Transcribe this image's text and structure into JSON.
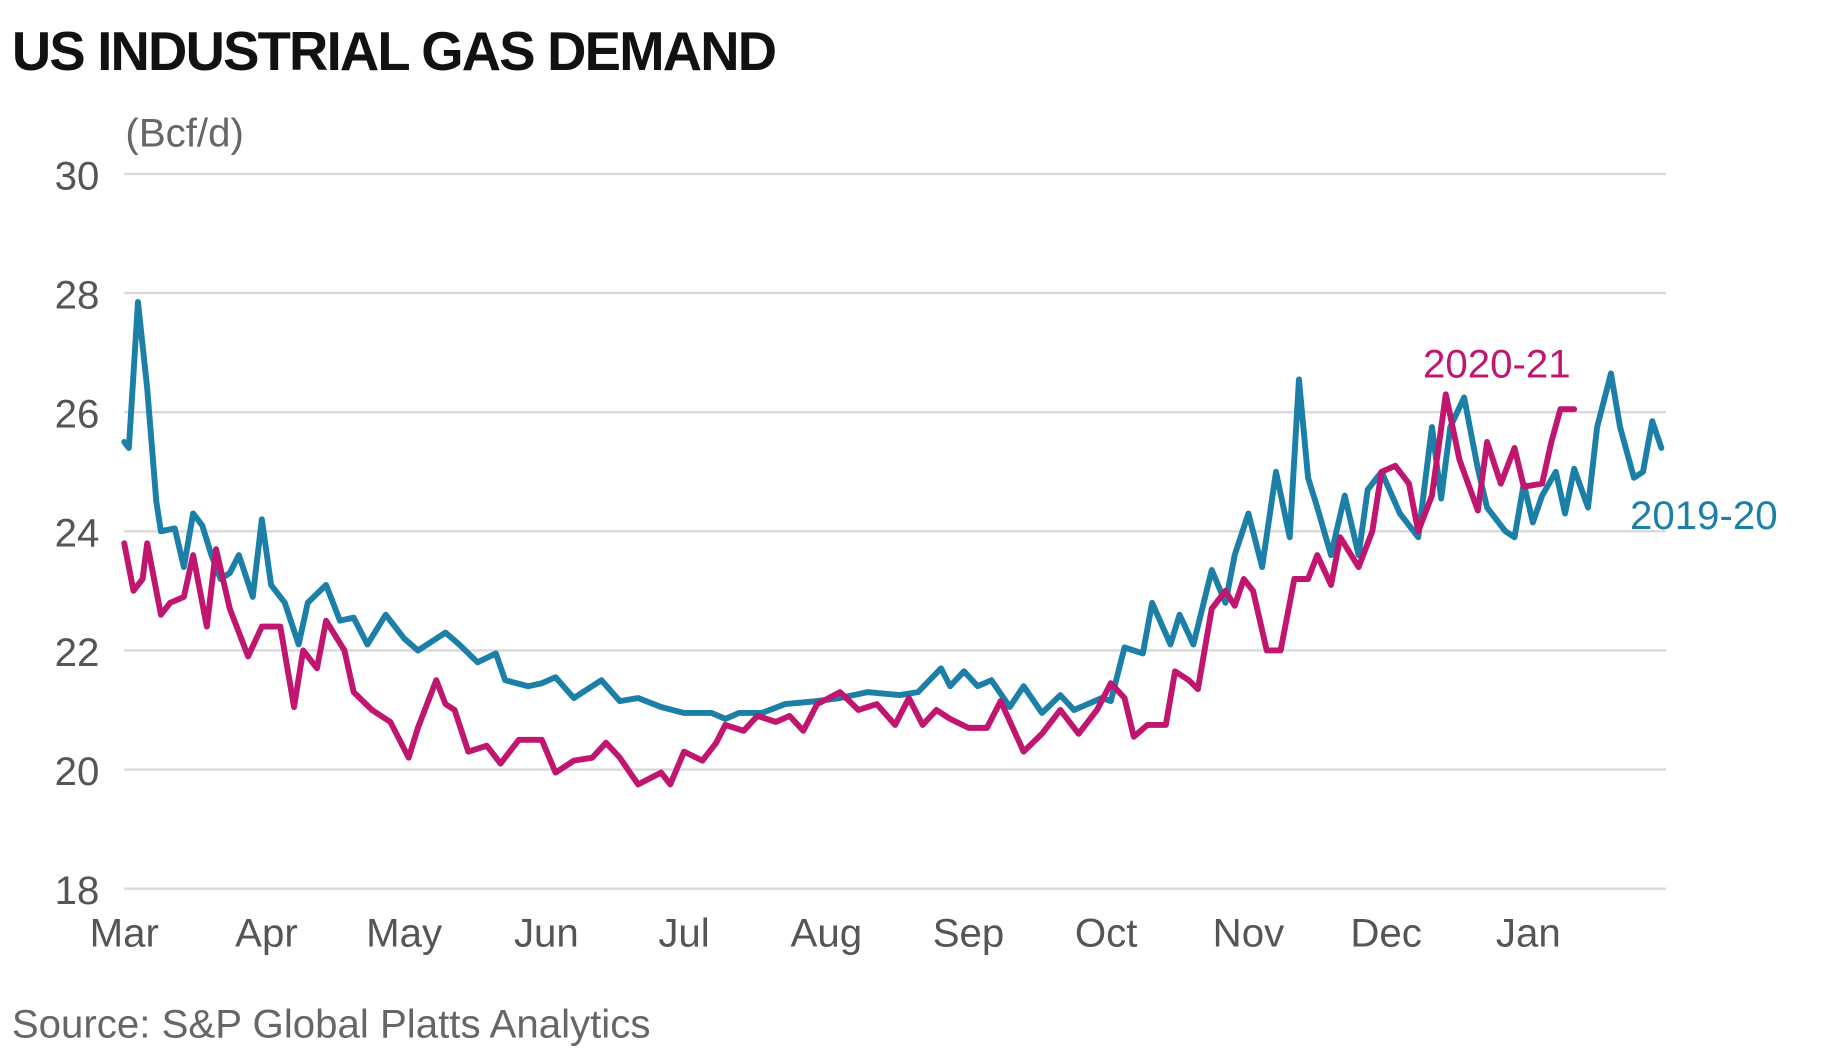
{
  "chart_data": {
    "type": "line",
    "title": "US INDUSTRIAL GAS DEMAND",
    "y_label": "(Bcf/d)",
    "source": "Source: S&P Global Platts Analytics",
    "xlim": [
      0,
      336
    ],
    "xticks": [
      {
        "value": 0,
        "label": "Mar"
      },
      {
        "value": 31,
        "label": "Apr"
      },
      {
        "value": 61,
        "label": "May"
      },
      {
        "value": 92,
        "label": "Jun"
      },
      {
        "value": 122,
        "label": "Jul"
      },
      {
        "value": 153,
        "label": "Aug"
      },
      {
        "value": 184,
        "label": "Sep"
      },
      {
        "value": 214,
        "label": "Oct"
      },
      {
        "value": 245,
        "label": "Nov"
      },
      {
        "value": 275,
        "label": "Dec"
      },
      {
        "value": 306,
        "label": "Jan"
      }
    ],
    "ylim": [
      18,
      30
    ],
    "yticks": [
      18,
      20,
      22,
      24,
      26,
      28,
      30
    ],
    "grid": true,
    "series": [
      {
        "name": "2019-20",
        "color": "#1b7fa8",
        "x": [
          0,
          1,
          3,
          5,
          7,
          8,
          11,
          13,
          15,
          17,
          19,
          21,
          23,
          25,
          28,
          30,
          32,
          35,
          38,
          40,
          44,
          47,
          50,
          53,
          57,
          61,
          64,
          70,
          73,
          77,
          81,
          83,
          88,
          91,
          94,
          98,
          104,
          108,
          112,
          117,
          122,
          128,
          131,
          134,
          139,
          144,
          151,
          156,
          162,
          169,
          173,
          178,
          180,
          183,
          186,
          189,
          193,
          196,
          200,
          204,
          207,
          213,
          215,
          218,
          222,
          224,
          228,
          230,
          233,
          237,
          240,
          242,
          245,
          248,
          251,
          254,
          256,
          258,
          260,
          263,
          266,
          269,
          271,
          274,
          278,
          282,
          285,
          287,
          289,
          292,
          295,
          297,
          301,
          303,
          305,
          307,
          309,
          312,
          314,
          316,
          319,
          321,
          324,
          326,
          329,
          331,
          333,
          335
        ],
        "values": [
          25.5,
          25.4,
          27.85,
          26.4,
          24.5,
          24.0,
          24.05,
          23.4,
          24.3,
          24.1,
          23.6,
          23.2,
          23.3,
          23.6,
          22.9,
          24.2,
          23.1,
          22.8,
          22.1,
          22.8,
          23.1,
          22.5,
          22.55,
          22.1,
          22.6,
          22.2,
          22.0,
          22.3,
          22.1,
          21.8,
          21.95,
          21.5,
          21.4,
          21.45,
          21.55,
          21.2,
          21.5,
          21.15,
          21.2,
          21.05,
          20.95,
          20.95,
          20.85,
          20.95,
          20.95,
          21.1,
          21.15,
          21.2,
          21.3,
          21.25,
          21.3,
          21.7,
          21.4,
          21.65,
          21.4,
          21.5,
          21.05,
          21.4,
          20.95,
          21.25,
          21.0,
          21.2,
          21.15,
          22.05,
          21.95,
          22.8,
          22.1,
          22.6,
          22.1,
          23.35,
          22.8,
          23.6,
          24.3,
          23.4,
          25.0,
          23.9,
          26.55,
          24.9,
          24.4,
          23.6,
          24.6,
          23.6,
          24.7,
          25.0,
          24.3,
          23.9,
          25.75,
          24.55,
          25.75,
          26.25,
          25.05,
          24.4,
          24.0,
          23.9,
          24.8,
          24.15,
          24.6,
          25.0,
          24.3,
          25.05,
          24.4,
          25.75,
          26.65,
          25.75,
          24.9,
          25.0,
          25.85,
          25.4
        ]
      },
      {
        "name": "2020-21",
        "color": "#c0166f",
        "x": [
          0,
          2,
          4,
          5,
          8,
          10,
          13,
          15,
          18,
          20,
          23,
          27,
          30,
          34,
          37,
          39,
          42,
          44,
          48,
          50,
          54,
          58,
          62,
          64,
          68,
          70,
          72,
          75,
          79,
          82,
          86,
          91,
          94,
          98,
          102,
          105,
          108,
          112,
          117,
          119,
          122,
          126,
          129,
          131,
          135,
          138,
          142,
          145,
          148,
          151,
          156,
          160,
          164,
          168,
          171,
          174,
          177,
          180,
          184,
          188,
          191,
          196,
          200,
          204,
          208,
          212,
          215,
          218,
          220,
          223,
          227,
          229,
          232,
          234,
          237,
          240,
          242,
          244,
          246,
          249,
          252,
          255,
          258,
          260,
          263,
          265,
          269,
          272,
          274,
          277,
          280,
          282,
          285,
          288,
          291,
          295,
          297,
          300,
          303,
          305,
          309,
          311,
          313,
          316
        ],
        "values": [
          23.8,
          23.0,
          23.2,
          23.8,
          22.6,
          22.8,
          22.9,
          23.6,
          22.4,
          23.7,
          22.7,
          21.9,
          22.4,
          22.4,
          21.05,
          22.0,
          21.7,
          22.5,
          22.0,
          21.3,
          21.0,
          20.8,
          20.2,
          20.7,
          21.5,
          21.1,
          21.0,
          20.3,
          20.4,
          20.1,
          20.5,
          20.5,
          19.95,
          20.15,
          20.2,
          20.45,
          20.2,
          19.75,
          19.95,
          19.75,
          20.3,
          20.15,
          20.45,
          20.75,
          20.65,
          20.9,
          20.8,
          20.9,
          20.65,
          21.1,
          21.3,
          21.0,
          21.1,
          20.75,
          21.2,
          20.75,
          21.0,
          20.85,
          20.7,
          20.7,
          21.15,
          20.3,
          20.6,
          21.0,
          20.6,
          21.0,
          21.45,
          21.2,
          20.55,
          20.75,
          20.75,
          21.65,
          21.5,
          21.35,
          22.7,
          23.0,
          22.75,
          23.2,
          23.0,
          22.0,
          22.0,
          23.2,
          23.2,
          23.6,
          23.1,
          23.9,
          23.4,
          24.0,
          25.0,
          25.1,
          24.8,
          24.0,
          24.6,
          26.3,
          25.2,
          24.35,
          25.5,
          24.8,
          25.4,
          24.75,
          24.8,
          25.5,
          26.05,
          26.05
        ]
      }
    ]
  }
}
